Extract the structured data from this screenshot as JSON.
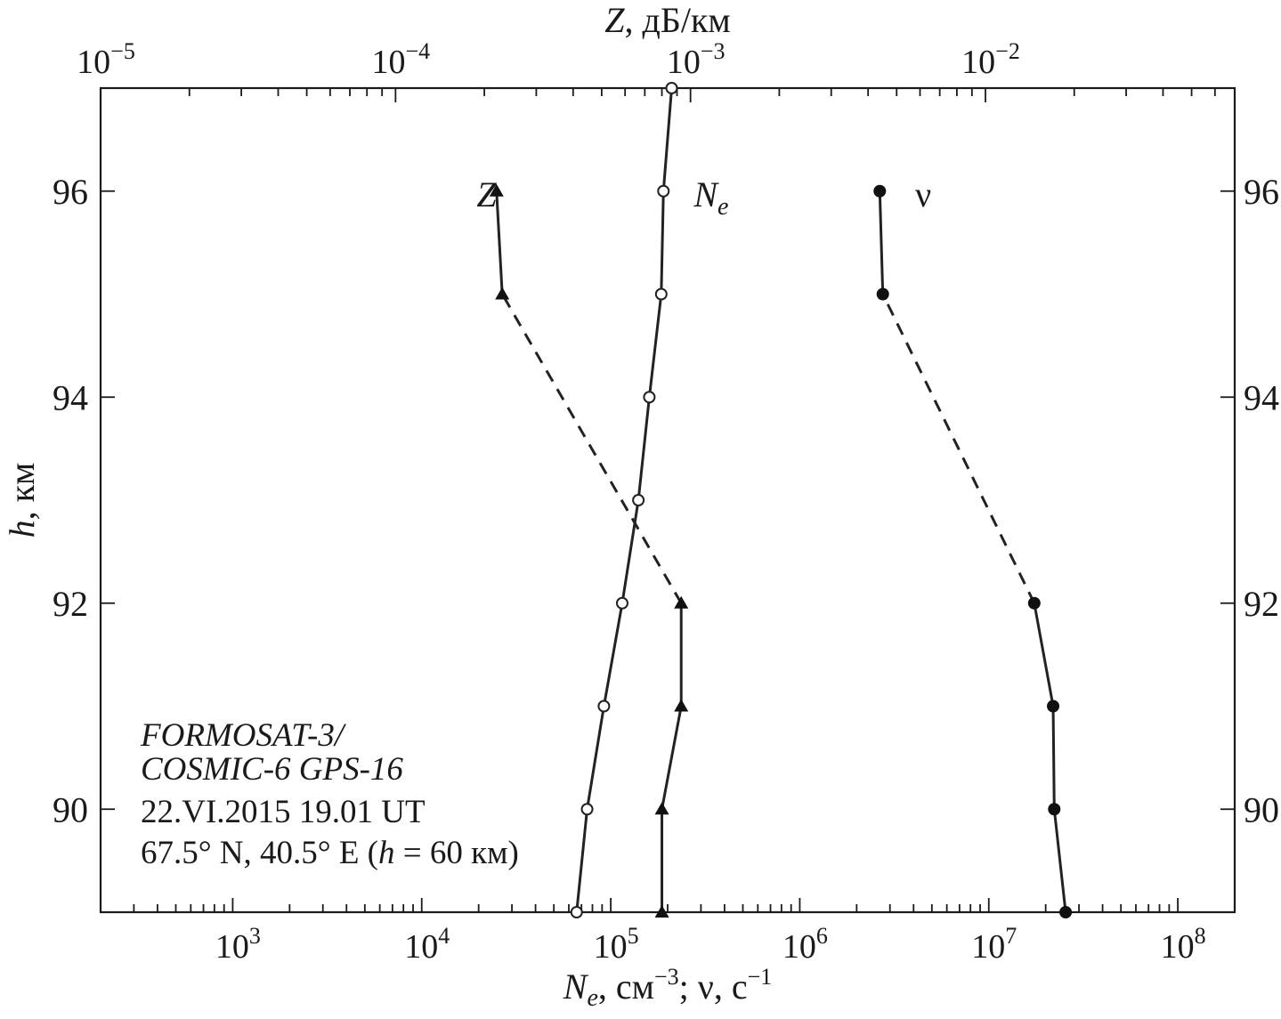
{
  "chart_data": {
    "type": "line",
    "axes": {
      "y": {
        "label_italic": "h",
        "label_rest": ", км",
        "range": [
          89,
          97
        ],
        "ticks": [
          90,
          92,
          94,
          96
        ],
        "tick_labels": [
          "90",
          "92",
          "94",
          "96"
        ]
      },
      "x_bottom": {
        "scale": "log",
        "range": [
          200,
          200000000
        ],
        "label_italic": "N",
        "label_sub": "e",
        "label_text1": ", см",
        "label_sup1": "−3",
        "label_text2": "; ν, с",
        "label_sup2": "−1",
        "ticks": [
          1000,
          10000,
          100000,
          1000000,
          10000000,
          100000000
        ],
        "tick_base": [
          "10",
          "10",
          "10",
          "10",
          "10",
          "10"
        ],
        "tick_exp": [
          "3",
          "4",
          "5",
          "6",
          "7",
          "8"
        ]
      },
      "x_top": {
        "scale": "log",
        "range": [
          1e-05,
          0.07
        ],
        "label_italic": "Z",
        "label_rest": ", дБ/км",
        "ticks": [
          1e-05,
          0.0001,
          0.001,
          0.01
        ],
        "tick_base": [
          "10",
          "10",
          "10",
          "10"
        ],
        "tick_exp": [
          "−5",
          "−4",
          "−3",
          "−2"
        ]
      }
    },
    "series": [
      {
        "name": "N",
        "name_sub": "e",
        "axis": "x_bottom",
        "marker": "open-circle",
        "points": [
          [
            66000,
            89
          ],
          [
            75000,
            90
          ],
          [
            92000,
            91
          ],
          [
            115000,
            92
          ],
          [
            140000,
            93
          ],
          [
            160000,
            94
          ],
          [
            185000,
            95
          ],
          [
            190000,
            96
          ],
          [
            210000,
            97
          ]
        ]
      },
      {
        "name": "ν",
        "axis": "x_bottom",
        "marker": "filled-circle",
        "points": [
          [
            25500000,
            89
          ],
          [
            22200000,
            90
          ],
          [
            21900000,
            91
          ],
          [
            17400000,
            92
          ],
          [
            2750000,
            95
          ],
          [
            2650000,
            96
          ]
        ],
        "dashed_segment": [
          [
            17400000,
            92
          ],
          [
            2750000,
            95
          ]
        ]
      },
      {
        "name": "Z",
        "axis": "x_top",
        "marker": "filled-triangle",
        "points": [
          [
            0.0008,
            89
          ],
          [
            0.0008,
            90
          ],
          [
            0.00093,
            91
          ],
          [
            0.00093,
            92
          ],
          [
            0.00023,
            95
          ],
          [
            0.00022,
            96
          ]
        ],
        "dashed_segment": [
          [
            0.00093,
            92
          ],
          [
            0.00023,
            95
          ]
        ]
      }
    ],
    "series_labels": [
      {
        "text": "Z",
        "sub": "",
        "x_axis": "x_bottom",
        "x": 22000,
        "y": 95.85
      },
      {
        "text": "N",
        "sub": "e",
        "x_axis": "x_bottom",
        "x": 340000,
        "y": 95.85
      },
      {
        "text": "ν",
        "sub": "",
        "x_axis": "x_bottom",
        "x": 4500000,
        "y": 95.85
      }
    ],
    "annotation": {
      "line1": "FORMOSAT-3/",
      "line2": "COSMIC-6 GPS-16",
      "line3": "22.VI.2015 19.01 UT",
      "line4_pre": "67.5° N, 40.5° E (",
      "line4_italic": "h",
      "line4_post": " = 60 км)"
    }
  }
}
